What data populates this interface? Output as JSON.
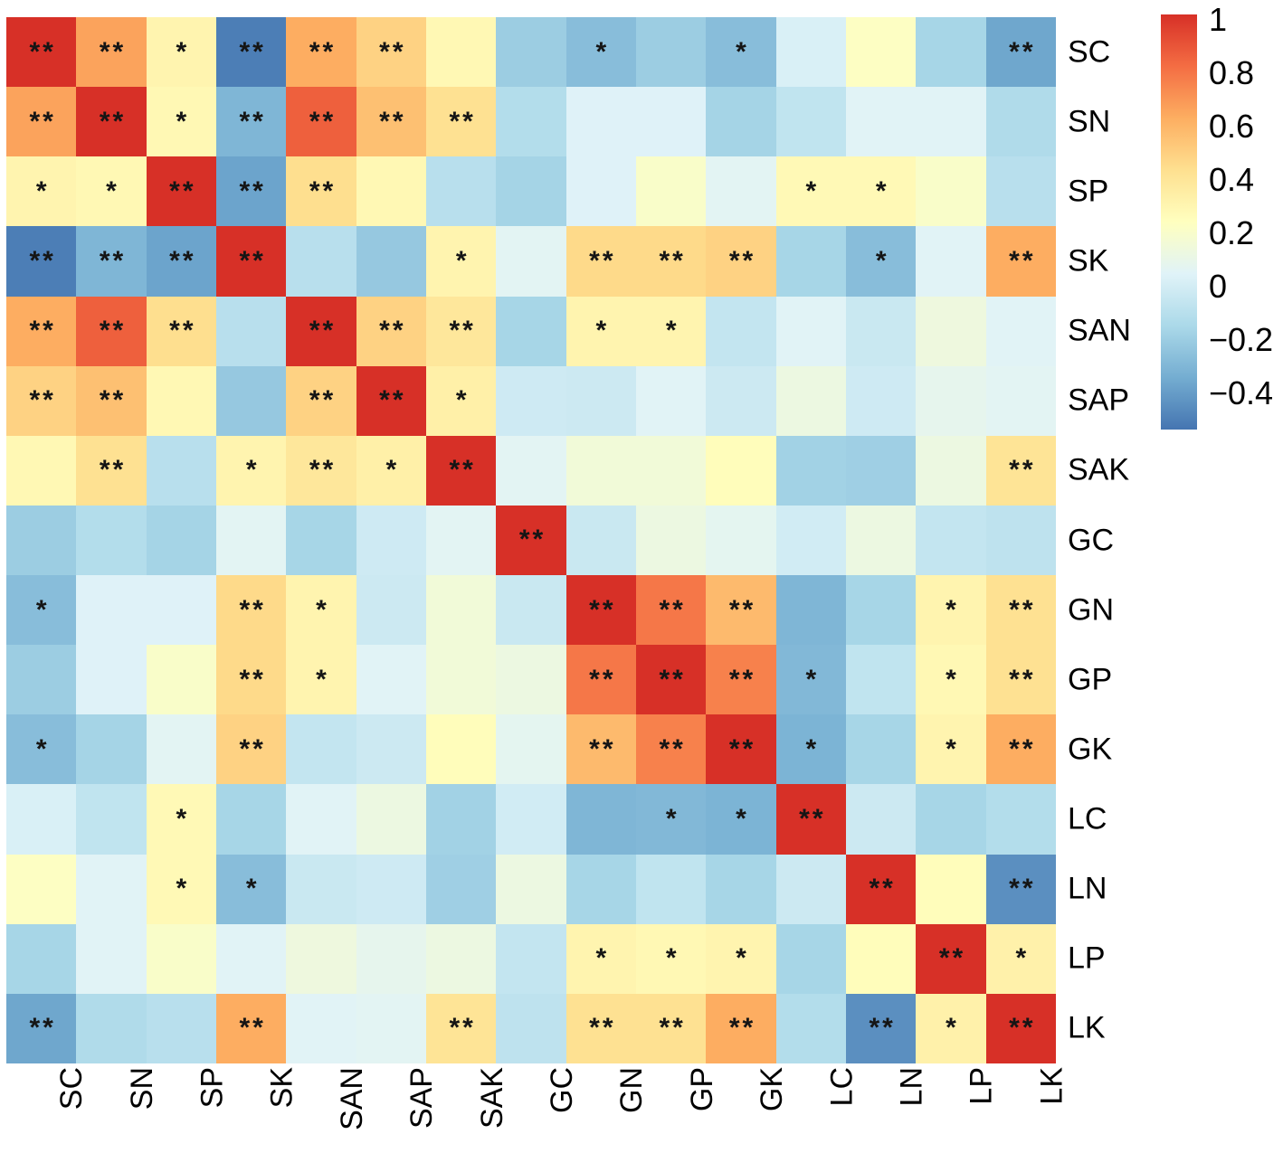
{
  "chart_data": {
    "type": "heatmap",
    "title": "",
    "description": "correlation matrix with significance stars",
    "variables": [
      "SC",
      "SN",
      "SP",
      "SK",
      "SAN",
      "SAP",
      "SAK",
      "GC",
      "GN",
      "GP",
      "GK",
      "LC",
      "LN",
      "LP",
      "LK"
    ],
    "matrix": [
      [
        1.0,
        0.65,
        0.3,
        -0.5,
        0.62,
        0.48,
        0.28,
        -0.2,
        -0.27,
        -0.2,
        -0.27,
        0.02,
        0.22,
        -0.16,
        -0.36
      ],
      [
        0.65,
        1.0,
        0.28,
        -0.3,
        0.85,
        0.55,
        0.42,
        -0.12,
        0.04,
        0.04,
        -0.17,
        -0.07,
        0.05,
        0.05,
        -0.13
      ],
      [
        0.3,
        0.28,
        1.0,
        -0.37,
        0.43,
        0.28,
        -0.1,
        -0.17,
        0.04,
        0.2,
        0.06,
        0.27,
        0.27,
        0.2,
        -0.1
      ],
      [
        -0.5,
        -0.3,
        -0.37,
        1.0,
        -0.1,
        -0.22,
        0.3,
        0.06,
        0.45,
        0.45,
        0.48,
        -0.16,
        -0.27,
        0.05,
        0.62
      ],
      [
        0.62,
        0.85,
        0.43,
        -0.1,
        1.0,
        0.48,
        0.38,
        -0.16,
        0.3,
        0.3,
        -0.06,
        0.05,
        -0.04,
        0.13,
        0.05
      ],
      [
        0.48,
        0.55,
        0.28,
        -0.22,
        0.48,
        1.0,
        0.33,
        -0.02,
        -0.03,
        0.05,
        -0.03,
        0.12,
        -0.02,
        0.08,
        0.06
      ],
      [
        0.28,
        0.42,
        -0.1,
        0.3,
        0.38,
        0.33,
        1.0,
        0.06,
        0.15,
        0.15,
        0.25,
        -0.18,
        -0.19,
        0.12,
        0.4
      ],
      [
        -0.2,
        -0.12,
        -0.17,
        0.06,
        -0.16,
        -0.02,
        0.06,
        1.0,
        -0.04,
        0.12,
        0.07,
        -0.01,
        0.12,
        -0.06,
        -0.08
      ],
      [
        -0.27,
        0.04,
        0.04,
        0.45,
        0.3,
        -0.03,
        0.15,
        -0.04,
        1.0,
        0.78,
        0.57,
        -0.3,
        -0.16,
        0.3,
        0.42
      ],
      [
        -0.2,
        0.04,
        0.2,
        0.45,
        0.3,
        0.05,
        0.15,
        0.12,
        0.78,
        1.0,
        0.75,
        -0.29,
        -0.07,
        0.28,
        0.42
      ],
      [
        -0.27,
        -0.17,
        0.06,
        0.48,
        -0.06,
        -0.03,
        0.25,
        0.07,
        0.57,
        0.75,
        1.0,
        -0.31,
        -0.16,
        0.3,
        0.62
      ],
      [
        0.02,
        -0.07,
        0.27,
        -0.16,
        0.05,
        0.12,
        -0.18,
        -0.01,
        -0.3,
        -0.29,
        -0.31,
        1.0,
        -0.03,
        -0.16,
        -0.12
      ],
      [
        0.22,
        0.05,
        0.27,
        -0.27,
        -0.04,
        -0.02,
        -0.19,
        0.12,
        -0.16,
        -0.07,
        -0.16,
        -0.03,
        1.0,
        0.25,
        -0.44
      ],
      [
        -0.16,
        0.05,
        0.2,
        0.05,
        0.13,
        0.08,
        0.12,
        -0.06,
        0.3,
        0.28,
        0.3,
        -0.16,
        0.25,
        1.0,
        0.32
      ],
      [
        -0.36,
        -0.13,
        -0.1,
        0.62,
        0.05,
        0.06,
        0.4,
        -0.08,
        0.42,
        0.42,
        0.62,
        -0.12,
        -0.44,
        0.32,
        1.0
      ]
    ],
    "significance": [
      [
        "**",
        "**",
        "*",
        "**",
        "**",
        "**",
        "",
        "",
        "*",
        "",
        "*",
        "",
        "",
        "",
        "**"
      ],
      [
        "**",
        "**",
        "*",
        "**",
        "**",
        "**",
        "**",
        "",
        "",
        "",
        "",
        "",
        "",
        "",
        ""
      ],
      [
        "*",
        "*",
        "**",
        "**",
        "**",
        "",
        "",
        "",
        "",
        "",
        "",
        "*",
        "*",
        "",
        ""
      ],
      [
        "**",
        "**",
        "**",
        "**",
        "",
        "",
        "*",
        "",
        "**",
        "**",
        "**",
        "",
        "*",
        "",
        "**"
      ],
      [
        "**",
        "**",
        "**",
        "",
        "**",
        "**",
        "**",
        "",
        "*",
        "*",
        "",
        "",
        "",
        "",
        ""
      ],
      [
        "**",
        "**",
        "",
        "",
        "**",
        "**",
        "*",
        "",
        "",
        "",
        "",
        "",
        "",
        "",
        ""
      ],
      [
        "",
        "**",
        "",
        "*",
        "**",
        "*",
        "**",
        "",
        "",
        "",
        "",
        "",
        "",
        "",
        "**"
      ],
      [
        "",
        "",
        "",
        "",
        "",
        "",
        "",
        "**",
        "",
        "",
        "",
        "",
        "",
        "",
        ""
      ],
      [
        "*",
        "",
        "",
        "**",
        "*",
        "",
        "",
        "",
        "**",
        "**",
        "**",
        "",
        "",
        "*",
        "**"
      ],
      [
        "",
        "",
        "",
        "**",
        "*",
        "",
        "",
        "",
        "**",
        "**",
        "**",
        "*",
        "",
        "*",
        "**"
      ],
      [
        "*",
        "",
        "",
        "**",
        "",
        "",
        "",
        "",
        "**",
        "**",
        "**",
        "*",
        "",
        "*",
        "**"
      ],
      [
        "",
        "",
        "*",
        "",
        "",
        "",
        "",
        "",
        "",
        "*",
        "*",
        "**",
        "",
        "",
        ""
      ],
      [
        "",
        "",
        "*",
        "*",
        "",
        "",
        "",
        "",
        "",
        "",
        "",
        "",
        "**",
        "",
        "**"
      ],
      [
        "",
        "",
        "",
        "",
        "",
        "",
        "",
        "",
        "*",
        "*",
        "*",
        "",
        "",
        "**",
        "*"
      ],
      [
        "**",
        "",
        "",
        "**",
        "",
        "",
        "**",
        "",
        "**",
        "**",
        "**",
        "",
        "**",
        "*",
        "**"
      ]
    ],
    "zlim": [
      -0.53,
      1
    ],
    "grid": "off",
    "legend_position": "right",
    "star_color": "#151515",
    "background_color": "#ffffff",
    "colorbar": {
      "colormap_stops": [
        "#4575b1",
        "#74add1",
        "#abd9e9",
        "#e0f3f8",
        "#ffffbf",
        "#fee090",
        "#fdae61",
        "#f46d43",
        "#d73027"
      ],
      "ticks": [
        {
          "value": 1.0,
          "label": "1"
        },
        {
          "value": 0.8,
          "label": "0.8"
        },
        {
          "value": 0.6,
          "label": "0.6"
        },
        {
          "value": 0.4,
          "label": "0.4"
        },
        {
          "value": 0.2,
          "label": "0.2"
        },
        {
          "value": 0.0,
          "label": "0"
        },
        {
          "value": -0.2,
          "label": "−0.2"
        },
        {
          "value": -0.4,
          "label": "−0.4"
        }
      ]
    }
  }
}
